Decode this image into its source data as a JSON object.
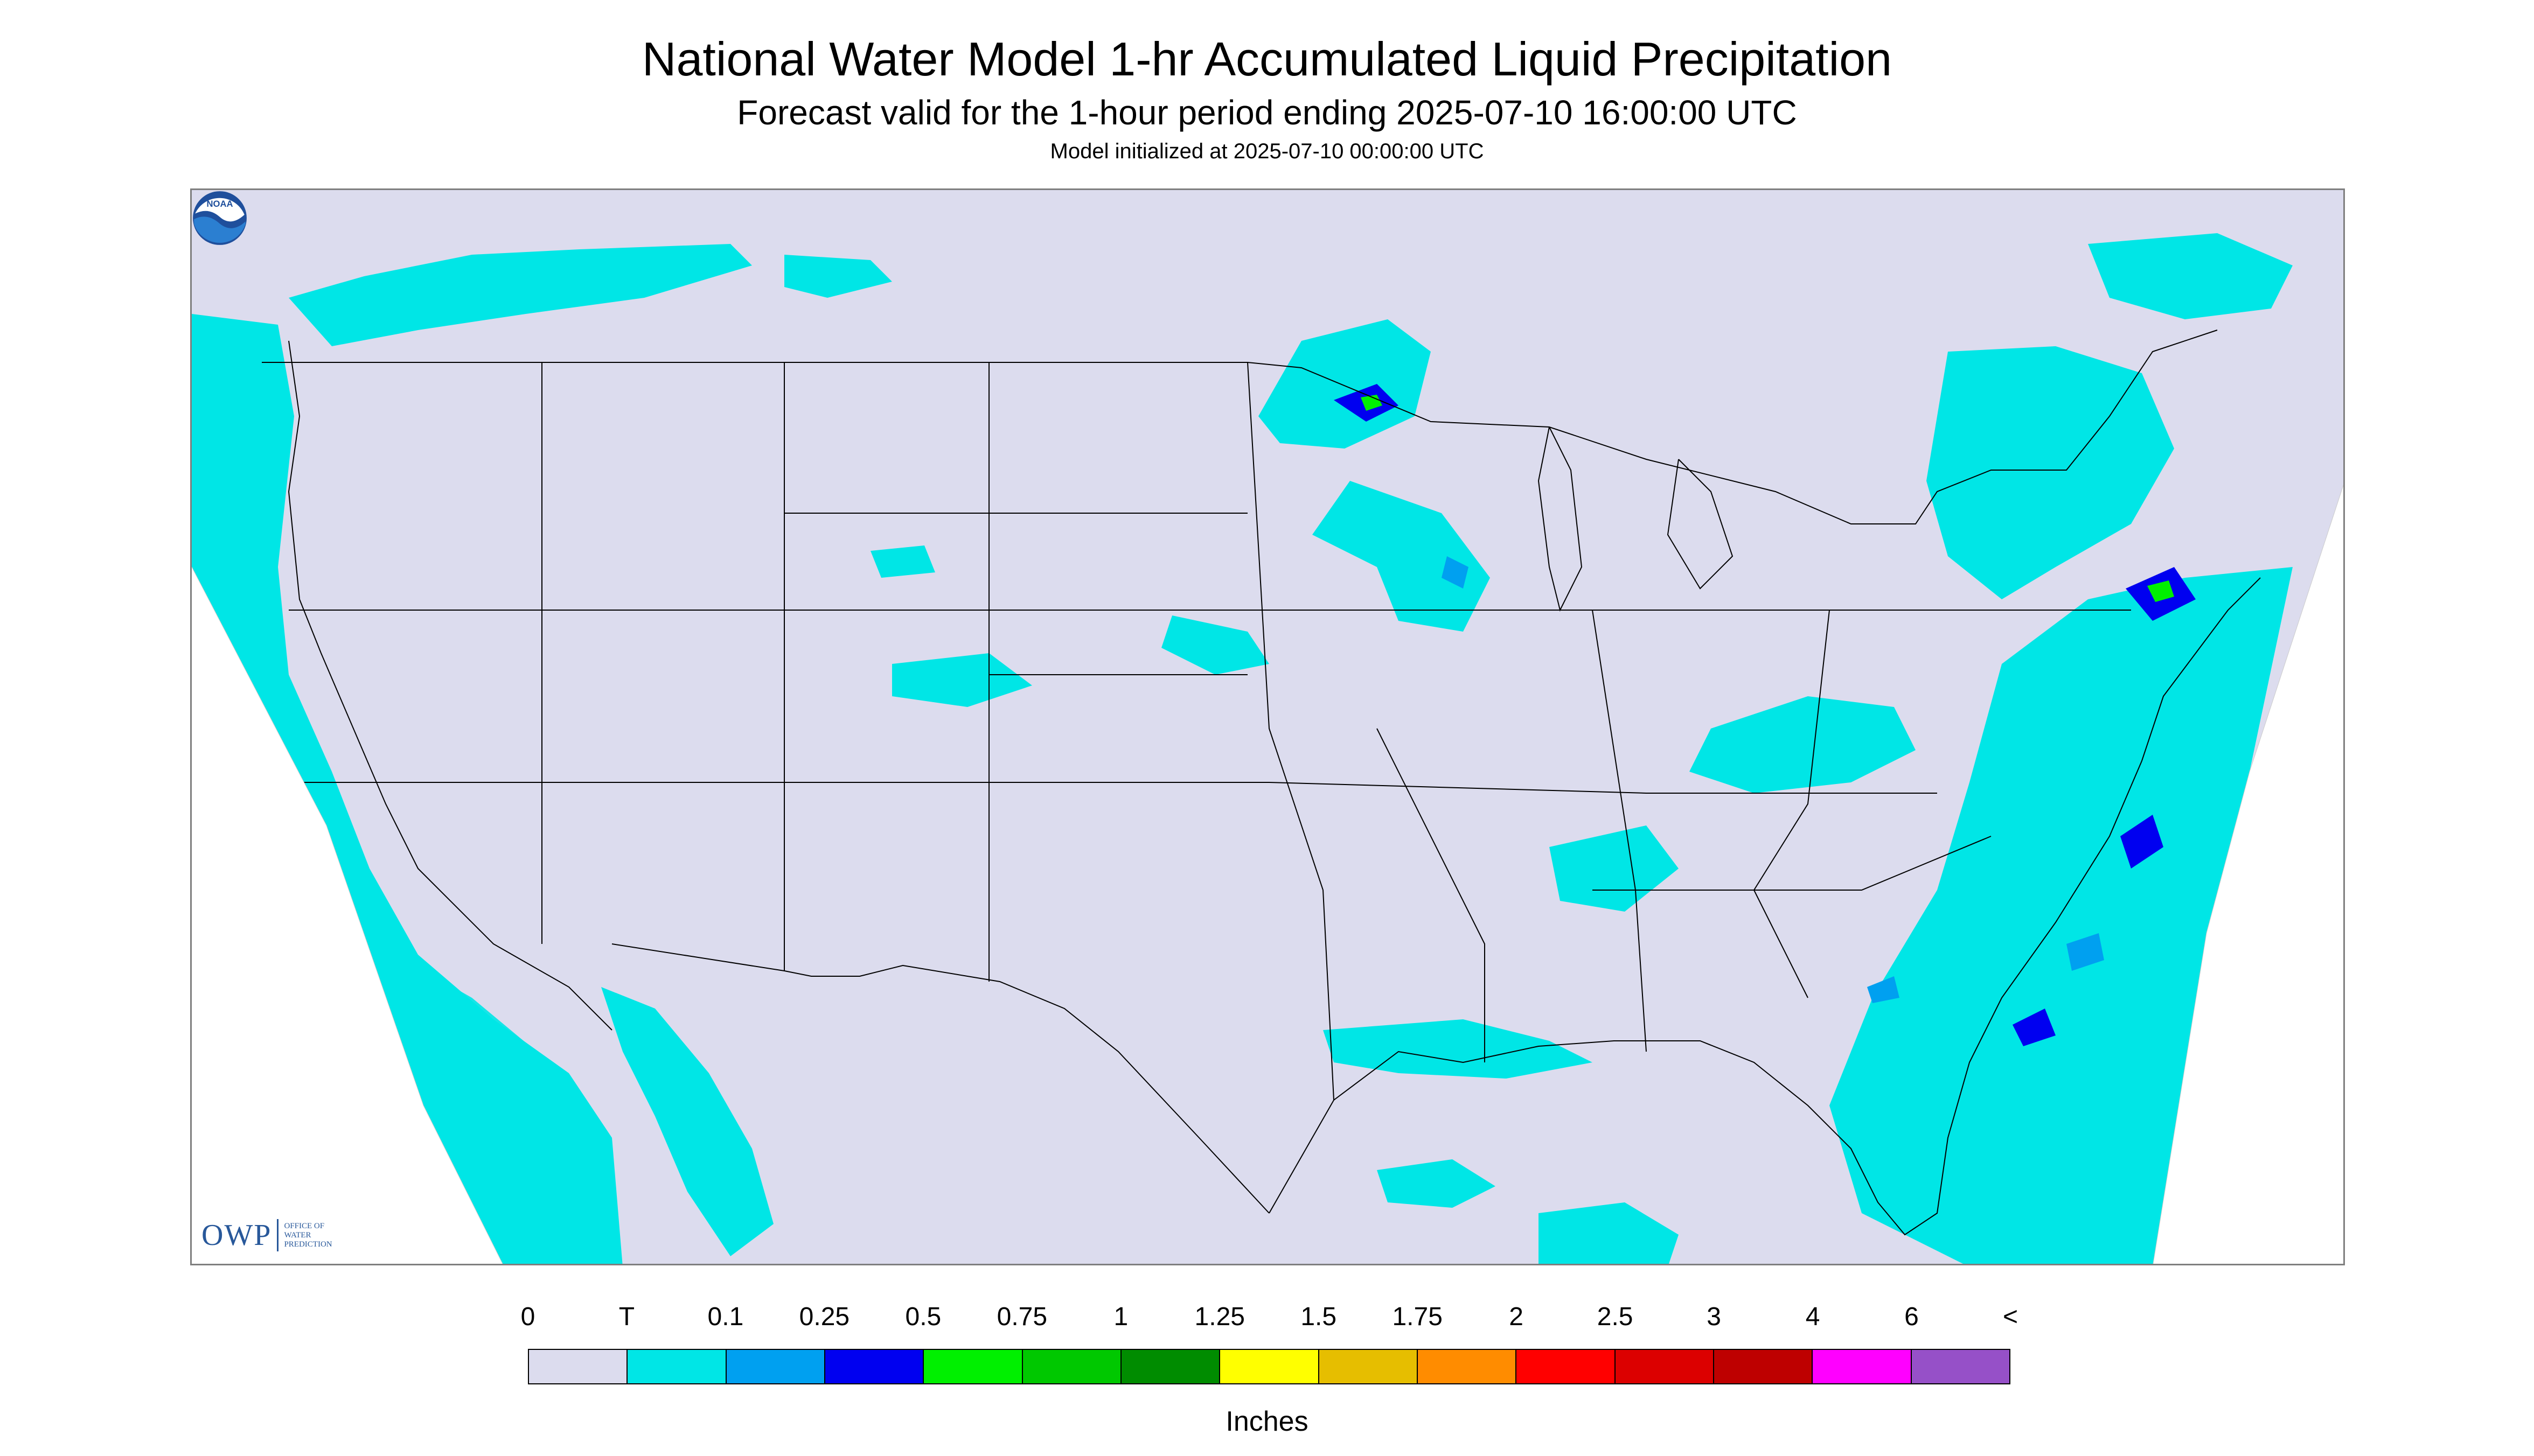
{
  "title": "National Water Model 1-hr Accumulated Liquid Precipitation",
  "subtitle": "Forecast valid for the 1-hour period ending 2025-07-10 16:00:00 UTC",
  "init_line": "Model initialized at 2025-07-10 00:00:00 UTC",
  "map": {
    "region": "CONUS",
    "background_color": "#dcdcee",
    "outside_color": "#ffffff",
    "border_color": "#000000",
    "trace_color": "#00e6e6"
  },
  "logos": {
    "owp": {
      "abbr": "OWP",
      "line1": "Office of",
      "line2": "Water",
      "line3": "Prediction"
    },
    "noaa": {
      "text": "NOAA",
      "icon": "noaa-emblem-icon"
    }
  },
  "legend": {
    "labels": [
      "0",
      "T",
      "0.1",
      "0.25",
      "0.5",
      "0.75",
      "1",
      "1.25",
      "1.5",
      "1.75",
      "2",
      "2.5",
      "3",
      "4",
      "6",
      "<"
    ],
    "colors": [
      "#dcdcee",
      "#00e6e6",
      "#00a0f0",
      "#0000f0",
      "#00f000",
      "#00c800",
      "#008c00",
      "#ffff00",
      "#e6be00",
      "#ff8c00",
      "#ff0000",
      "#dc0000",
      "#be0000",
      "#ff00ff",
      "#9650c8"
    ],
    "units": "Inches"
  }
}
